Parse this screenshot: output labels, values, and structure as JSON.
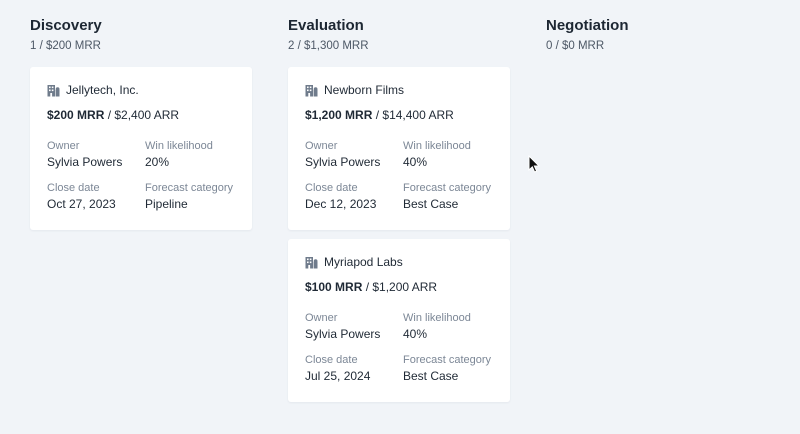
{
  "board": {
    "columns": [
      {
        "title": "Discovery",
        "summary": "1 / $200 MRR",
        "cards": [
          {
            "company": "Jellytech, Inc.",
            "mrr": "$200 MRR",
            "arr": "$2,400 ARR",
            "owner_label": "Owner",
            "owner": "Sylvia Powers",
            "win_label": "Win likelihood",
            "win": "20%",
            "close_label": "Close date",
            "close": "Oct 27, 2023",
            "forecast_label": "Forecast category",
            "forecast": "Pipeline"
          }
        ]
      },
      {
        "title": "Evaluation",
        "summary": "2 / $1,300 MRR",
        "cards": [
          {
            "company": "Newborn Films",
            "mrr": "$1,200 MRR",
            "arr": "$14,400 ARR",
            "owner_label": "Owner",
            "owner": "Sylvia Powers",
            "win_label": "Win likelihood",
            "win": "40%",
            "close_label": "Close date",
            "close": "Dec 12, 2023",
            "forecast_label": "Forecast category",
            "forecast": "Best Case"
          },
          {
            "company": "Myriapod Labs",
            "mrr": "$100 MRR",
            "arr": "$1,200 ARR",
            "owner_label": "Owner",
            "owner": "Sylvia Powers",
            "win_label": "Win likelihood",
            "win": "40%",
            "close_label": "Close date",
            "close": "Jul 25, 2024",
            "forecast_label": "Forecast category",
            "forecast": "Best Case"
          }
        ]
      },
      {
        "title": "Negotiation",
        "summary": "0 / $0 MRR",
        "cards": []
      }
    ],
    "separator": " / "
  },
  "icons": {
    "company": "building-icon",
    "cursor": "mouse-pointer-icon"
  },
  "colors": {
    "background": "#f1f4f8",
    "card": "#ffffff",
    "icon": "#6f7b8b",
    "label": "#7c8796",
    "text": "#1f2935"
  }
}
